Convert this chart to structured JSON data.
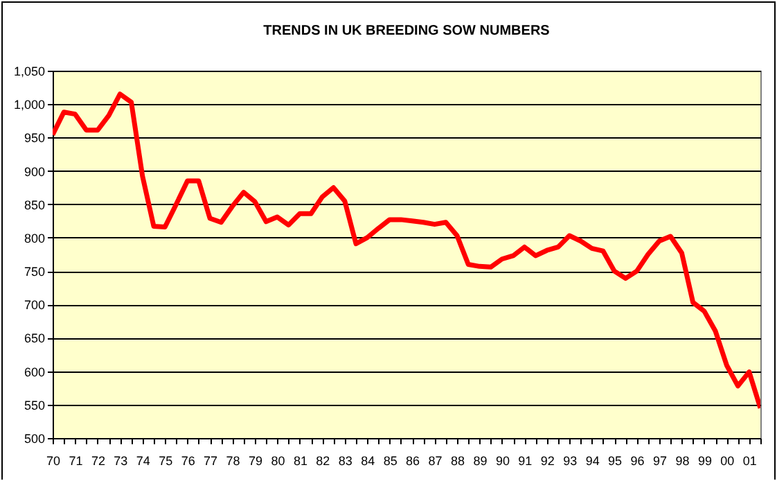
{
  "chart_data": {
    "type": "line",
    "title": "TRENDS IN UK BREEDING SOW NUMBERS",
    "x": [
      1970,
      1970.5,
      1971,
      1971.5,
      1972,
      1972.5,
      1973,
      1973.5,
      1974,
      1974.5,
      1975,
      1975.5,
      1976,
      1976.5,
      1977,
      1977.5,
      1978,
      1978.5,
      1979,
      1979.5,
      1980,
      1980.5,
      1981,
      1981.5,
      1982,
      1982.5,
      1983,
      1983.5,
      1984,
      1984.5,
      1985,
      1985.5,
      1986,
      1986.5,
      1987,
      1987.5,
      1988,
      1988.5,
      1989,
      1989.5,
      1990,
      1990.5,
      1991,
      1991.5,
      1992,
      1992.5,
      1993,
      1993.5,
      1994,
      1994.5,
      1995,
      1995.5,
      1996,
      1996.5,
      1997,
      1997.5,
      1998,
      1998.5,
      1999,
      1999.5,
      2000,
      2000.5,
      2001,
      2001.5
    ],
    "series": [
      {
        "color": "#ff0000",
        "values": [
          954,
          988,
          985,
          961,
          961,
          983,
          1015,
          1003,
          892,
          817,
          816,
          850,
          885,
          885,
          829,
          823,
          847,
          868,
          854,
          824,
          831,
          819,
          836,
          836,
          861,
          875,
          855,
          791,
          800,
          814,
          827,
          827,
          825,
          823,
          820,
          823,
          803,
          760,
          757,
          756,
          768,
          773,
          786,
          773,
          781,
          786,
          803,
          795,
          784,
          780,
          750,
          739,
          750,
          775,
          795,
          802,
          777,
          703,
          690,
          660,
          609,
          578,
          599,
          545
        ]
      }
    ],
    "xlim": [
      1970,
      2001.5
    ],
    "xticks": [
      {
        "value": 1970,
        "label": "70"
      },
      {
        "value": 1970.5,
        "label": null
      },
      {
        "value": 1971,
        "label": "71"
      },
      {
        "value": 1971.5,
        "label": null
      },
      {
        "value": 1972,
        "label": "72"
      },
      {
        "value": 1972.5,
        "label": null
      },
      {
        "value": 1973,
        "label": "73"
      },
      {
        "value": 1973.5,
        "label": null
      },
      {
        "value": 1974,
        "label": "74"
      },
      {
        "value": 1974.5,
        "label": null
      },
      {
        "value": 1975,
        "label": "75"
      },
      {
        "value": 1975.5,
        "label": null
      },
      {
        "value": 1976,
        "label": "76"
      },
      {
        "value": 1976.5,
        "label": null
      },
      {
        "value": 1977,
        "label": "77"
      },
      {
        "value": 1977.5,
        "label": null
      },
      {
        "value": 1978,
        "label": "78"
      },
      {
        "value": 1978.5,
        "label": null
      },
      {
        "value": 1979,
        "label": "79"
      },
      {
        "value": 1979.5,
        "label": null
      },
      {
        "value": 1980,
        "label": "80"
      },
      {
        "value": 1980.5,
        "label": null
      },
      {
        "value": 1981,
        "label": "81"
      },
      {
        "value": 1981.5,
        "label": null
      },
      {
        "value": 1982,
        "label": "82"
      },
      {
        "value": 1982.5,
        "label": null
      },
      {
        "value": 1983,
        "label": "83"
      },
      {
        "value": 1983.5,
        "label": null
      },
      {
        "value": 1984,
        "label": "84"
      },
      {
        "value": 1984.5,
        "label": null
      },
      {
        "value": 1985,
        "label": "85"
      },
      {
        "value": 1985.5,
        "label": null
      },
      {
        "value": 1986,
        "label": "86"
      },
      {
        "value": 1986.5,
        "label": null
      },
      {
        "value": 1987,
        "label": "87"
      },
      {
        "value": 1987.5,
        "label": null
      },
      {
        "value": 1988,
        "label": "88"
      },
      {
        "value": 1988.5,
        "label": null
      },
      {
        "value": 1989,
        "label": "89"
      },
      {
        "value": 1989.5,
        "label": null
      },
      {
        "value": 1990,
        "label": "90"
      },
      {
        "value": 1990.5,
        "label": null
      },
      {
        "value": 1991,
        "label": "91"
      },
      {
        "value": 1991.5,
        "label": null
      },
      {
        "value": 1992,
        "label": "92"
      },
      {
        "value": 1992.5,
        "label": null
      },
      {
        "value": 1993,
        "label": "93"
      },
      {
        "value": 1993.5,
        "label": null
      },
      {
        "value": 1994,
        "label": "94"
      },
      {
        "value": 1994.5,
        "label": null
      },
      {
        "value": 1995,
        "label": "95"
      },
      {
        "value": 1995.5,
        "label": null
      },
      {
        "value": 1996,
        "label": "96"
      },
      {
        "value": 1996.5,
        "label": null
      },
      {
        "value": 1997,
        "label": "97"
      },
      {
        "value": 1997.5,
        "label": null
      },
      {
        "value": 1998,
        "label": "98"
      },
      {
        "value": 1998.5,
        "label": null
      },
      {
        "value": 1999,
        "label": "99"
      },
      {
        "value": 1999.5,
        "label": null
      },
      {
        "value": 2000,
        "label": "00"
      },
      {
        "value": 2000.5,
        "label": null
      },
      {
        "value": 2001,
        "label": "01"
      },
      {
        "value": 2001.5,
        "label": null
      }
    ],
    "ylim": [
      500,
      1050
    ],
    "yticks": [
      500,
      550,
      600,
      650,
      700,
      750,
      800,
      850,
      900,
      950,
      {
        "value": 1000,
        "label": "1,000"
      },
      {
        "value": 1050,
        "label": "1,050"
      }
    ],
    "grid": "y"
  }
}
